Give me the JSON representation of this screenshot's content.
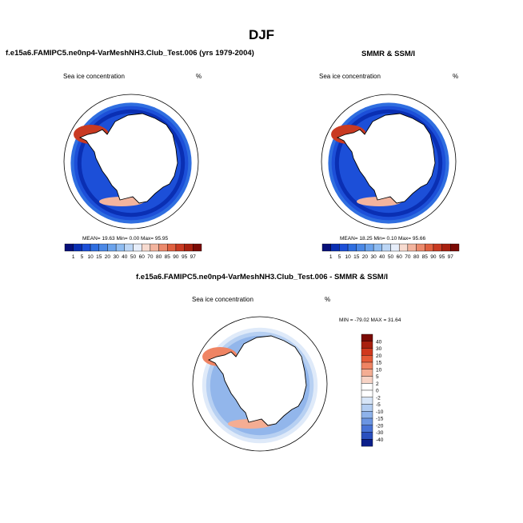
{
  "figure": {
    "title": "DJF",
    "left_title": "f.e15a6.FAMIPC5.ne0np4-VarMeshNH3.Club_Test.006 (yrs 1979-2004)",
    "right_title": "SMMR & SSM/I",
    "bottom_title": "f.e15a6.FAMIPC5.ne0np4-VarMeshNH3.Club_Test.006 - SMMR & SSM/I"
  },
  "chart_data": [
    {
      "type": "heatmap",
      "id": "model",
      "title": "f.e15a6.FAMIPC5.ne0np4-VarMeshNH3.Club_Test.006 (yrs 1979-2004)",
      "variable": "Sea ice concentration",
      "units": "%",
      "stats": "MEAN=  19.63  Min=   0.00  Max=  95.95",
      "levels": [
        "1",
        "5",
        "10",
        "15",
        "20",
        "30",
        "40",
        "50",
        "60",
        "70",
        "80",
        "85",
        "90",
        "95",
        "97"
      ]
    },
    {
      "type": "heatmap",
      "id": "obs",
      "title": "SMMR & SSM/I",
      "variable": "Sea ice concentration",
      "units": "%",
      "stats": "MEAN=  18.25  Min=   0.10  Max=  95.66",
      "levels": [
        "1",
        "5",
        "10",
        "15",
        "20",
        "30",
        "40",
        "50",
        "60",
        "70",
        "80",
        "85",
        "90",
        "95",
        "97"
      ]
    },
    {
      "type": "heatmap",
      "id": "diff",
      "title": "f.e15a6.FAMIPC5.ne0np4-VarMeshNH3.Club_Test.006 - SMMR & SSM/I",
      "variable": "Sea ice concentration",
      "units": "%",
      "stats": "MIN = -79.02 MAX =  31.64",
      "levels": [
        "40",
        "30",
        "20",
        "15",
        "10",
        "5",
        "2",
        "0",
        "-2",
        "-5",
        "-10",
        "-15",
        "-20",
        "-30",
        "-40"
      ]
    }
  ],
  "colors": {
    "abs_scale": [
      "#08107a",
      "#0a2fb3",
      "#1c4fd8",
      "#2f6ee0",
      "#4a88e6",
      "#6aa2ec",
      "#8fbcf1",
      "#bcd6f5",
      "#e7eefa",
      "#f7dbd0",
      "#f3b49e",
      "#ec8a6c",
      "#e0603f",
      "#c93a22",
      "#a8200f",
      "#7b0a05"
    ],
    "diff_scale": [
      "#7b0a05",
      "#a8200f",
      "#d0391e",
      "#e55b38",
      "#ef8463",
      "#f4ad93",
      "#f7d3c5",
      "#ffffff",
      "#ffffff",
      "#d7e5f7",
      "#b3cdf1",
      "#8eb2ea",
      "#6b95e2",
      "#4873d6",
      "#2a4fbe",
      "#0b1f8a"
    ],
    "land": "#ffffff"
  }
}
